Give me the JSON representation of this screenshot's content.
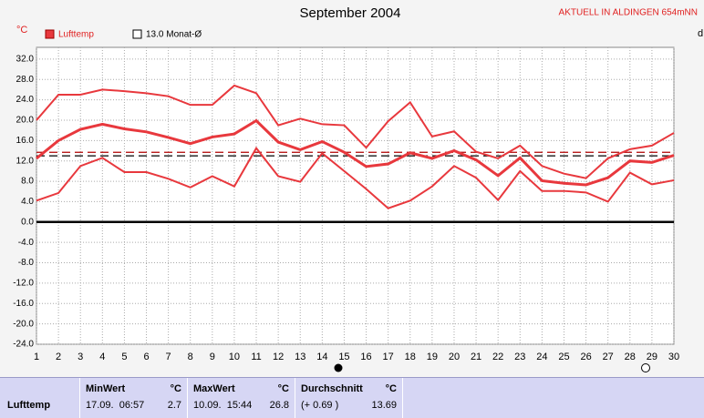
{
  "chart_data": {
    "type": "line",
    "title": "September 2004",
    "station": "AKTUELL IN ALDINGEN 654mNN",
    "y_unit": "°C",
    "x": [
      1,
      2,
      3,
      4,
      5,
      6,
      7,
      8,
      9,
      10,
      11,
      12,
      13,
      14,
      15,
      16,
      17,
      18,
      19,
      20,
      21,
      22,
      23,
      24,
      25,
      26,
      27,
      28,
      29,
      30
    ],
    "xlim": [
      1,
      30
    ],
    "xticks": [
      1,
      2,
      3,
      4,
      5,
      6,
      7,
      8,
      9,
      10,
      11,
      12,
      13,
      14,
      15,
      16,
      17,
      18,
      19,
      20,
      21,
      22,
      23,
      24,
      25,
      26,
      27,
      28,
      29,
      30
    ],
    "ylim": [
      -24,
      34.3
    ],
    "yticks": [
      {
        "value": 32,
        "label": "32.0"
      },
      {
        "value": 28,
        "label": "28.0"
      },
      {
        "value": 24,
        "label": "24.0"
      },
      {
        "value": 20,
        "label": "20.0"
      },
      {
        "value": 16,
        "label": "16.0"
      },
      {
        "value": 12,
        "label": "12.0"
      },
      {
        "value": 8,
        "label": "8.0"
      },
      {
        "value": 4,
        "label": "4.0"
      },
      {
        "value": 0,
        "label": "0.0"
      },
      {
        "value": -4,
        "label": "-4.0"
      },
      {
        "value": -8,
        "label": "-8.0"
      },
      {
        "value": -12,
        "label": "-12.0"
      },
      {
        "value": -16,
        "label": "-16.0"
      },
      {
        "value": -20,
        "label": "-20.0"
      },
      {
        "value": -24,
        "label": "-24.0"
      }
    ],
    "grid": true,
    "series": [
      {
        "name": "Lufttemp",
        "color": "#e8383d",
        "width": 3,
        "values": [
          12.5,
          16,
          18.2,
          19.2,
          18.3,
          17.7,
          16.6,
          15.4,
          16.7,
          17.3,
          19.9,
          15.7,
          14.2,
          15.8,
          13.7,
          10.9,
          11.4,
          13.6,
          12.5,
          14,
          12.2,
          9.1,
          12.6,
          8.1,
          7.6,
          7.3,
          8.7,
          12,
          11.7,
          13.1
        ]
      },
      {
        "color": "#e8383d",
        "width": 2,
        "values": [
          20,
          25,
          25,
          26,
          25.7,
          25.3,
          24.7,
          23,
          23,
          26.8,
          25.3,
          19,
          20.3,
          19.2,
          19,
          14.6,
          19.8,
          23.5,
          16.8,
          17.8,
          13.8,
          12.5,
          15,
          11,
          9.5,
          8.6,
          12.5,
          14.3,
          15,
          17.5
        ]
      },
      {
        "color": "#e8383d",
        "width": 2,
        "values": [
          4.2,
          5.7,
          11,
          12.6,
          9.8,
          9.8,
          8.5,
          6.8,
          9,
          7,
          14.5,
          9,
          7.9,
          13.5,
          10,
          6.5,
          2.7,
          4.2,
          7,
          11,
          8.7,
          4.3,
          10,
          6.1,
          6.1,
          5.8,
          4,
          9.7,
          7.4,
          8.2
        ]
      }
    ],
    "reference_lines": [
      {
        "value": 13.0,
        "label": "13.0 Monat-Ø",
        "color": "#000000"
      },
      {
        "value": 13.69,
        "color": "#b00000"
      }
    ]
  },
  "table": {
    "row_label": "Lufttemp",
    "columns": [
      {
        "title": "MinWert",
        "unit": "°C",
        "time": "17.09.  06:57",
        "value": "2.7"
      },
      {
        "title": "MaxWert",
        "unit": "°C",
        "time": "10.09.  15:44",
        "value": "26.8"
      },
      {
        "title": "Durchschnitt",
        "unit": "°C",
        "time": "(+ 0.69 )",
        "value": "13.69"
      }
    ]
  }
}
